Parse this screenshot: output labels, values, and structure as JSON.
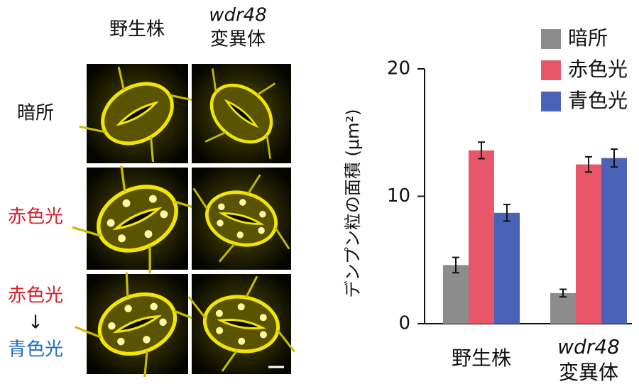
{
  "image_panel": {
    "columns": [
      [
        "野生株"
      ],
      [
        "wdr48",
        "変異体"
      ]
    ],
    "rows": [
      [
        "暗所"
      ],
      [
        "赤色光"
      ],
      [
        "赤色光",
        "↓",
        "青色光"
      ]
    ]
  },
  "chart_data": {
    "type": "bar",
    "y_label": "デンプン粒の面積 (μm²)",
    "categories": [
      [
        "野生株"
      ],
      [
        "wdr48",
        "変異体"
      ]
    ],
    "series": [
      {
        "name": "暗所",
        "color": "#8c8c8c",
        "values": [
          4.6,
          2.4
        ],
        "errors": [
          0.6,
          0.3
        ]
      },
      {
        "name": "赤色光",
        "color": "#e8566a",
        "values": [
          13.6,
          12.5
        ],
        "errors": [
          0.65,
          0.6
        ]
      },
      {
        "name": "青色光",
        "color": "#4a62b8",
        "values": [
          8.7,
          13.0
        ],
        "errors": [
          0.65,
          0.7
        ]
      }
    ],
    "ylim": [
      0,
      20
    ],
    "yticks": [
      0,
      10,
      20
    ],
    "grid": false,
    "legend": "top-right"
  }
}
